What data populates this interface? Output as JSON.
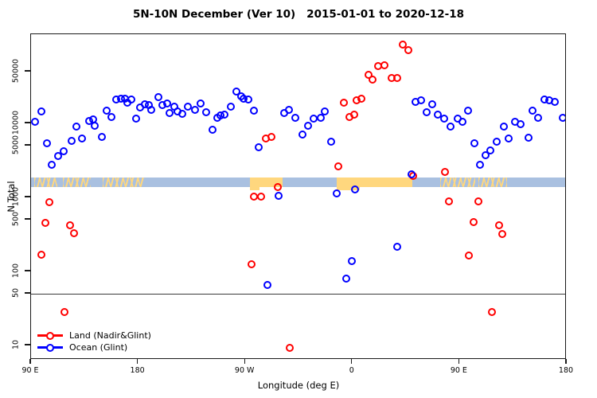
{
  "title_parts": [
    "5N-10N December (Ver 10)",
    "2015-01-01 to 2020-12-18"
  ],
  "chart_data": {
    "type": "scatter",
    "title": "5N-10N December (Ver 10)  2015-01-01 to 2020-12-18",
    "xlabel": "Longitude (deg E)",
    "ylabel": "N Total",
    "x_axis": {
      "note": "longitude axis wraps: 90E -> 180 -> 90W -> 0 -> 90E -> 180; stored as degrees 90..540 along axis",
      "min_deg": 90,
      "max_deg": 540,
      "ticks": [
        {
          "deg": 90,
          "label": "90 E"
        },
        {
          "deg": 180,
          "label": "180"
        },
        {
          "deg": 270,
          "label": "90 W"
        },
        {
          "deg": 360,
          "label": "0"
        },
        {
          "deg": 450,
          "label": "90 E"
        },
        {
          "deg": 540,
          "label": "180"
        }
      ]
    },
    "y_axis": {
      "scale": "log10",
      "min": 6.5,
      "max": 160000,
      "ticks": [
        {
          "value": 50000,
          "label": "50000"
        },
        {
          "value": 10000,
          "label": "10000"
        },
        {
          "value": 5000,
          "label": "5000"
        },
        {
          "value": 1000,
          "label": "1000"
        },
        {
          "value": 500,
          "label": "500"
        },
        {
          "value": 100,
          "label": "100"
        },
        {
          "value": 50,
          "label": "50"
        },
        {
          "value": 10,
          "label": "10"
        }
      ]
    },
    "reference_line": {
      "value": 50,
      "color": "#3a3a3a"
    },
    "highlight_band": {
      "value_min": 1380,
      "value_max": 1860,
      "color": "#a9c0e0"
    },
    "flagged_patches": {
      "color": "#ffd77e",
      "ranges": [
        {
          "from_deg": 93,
          "to_deg": 112,
          "style": "speckle"
        },
        {
          "from_deg": 117,
          "to_deg": 140,
          "style": "speckle"
        },
        {
          "from_deg": 150,
          "to_deg": 185,
          "style": "speckle"
        },
        {
          "from_deg": 274,
          "to_deg": 301,
          "style": "solid"
        },
        {
          "from_deg": 347,
          "to_deg": 410,
          "style": "solid"
        },
        {
          "from_deg": 434,
          "to_deg": 463,
          "style": "speckle"
        },
        {
          "from_deg": 466,
          "to_deg": 490,
          "style": "speckle"
        }
      ]
    },
    "legend": {
      "position": "bottom-left"
    },
    "series": [
      {
        "name": "Land (Nadir&Glint)",
        "color": "#ff0000",
        "points": [
          [
            105.2,
            860
          ],
          [
            101.8,
            450
          ],
          [
            122.6,
            420
          ],
          [
            125.9,
            330
          ],
          [
            98.5,
            168
          ],
          [
            117.9,
            28
          ],
          [
            275.2,
            125
          ],
          [
            277.2,
            1030
          ],
          [
            283.2,
            1030
          ],
          [
            297.2,
            1380
          ],
          [
            287.2,
            6250
          ],
          [
            291.8,
            6560
          ],
          [
            307.3,
            9.3
          ],
          [
            348.1,
            2630
          ],
          [
            352.8,
            19000
          ],
          [
            357.5,
            12200
          ],
          [
            361.5,
            13100
          ],
          [
            363.5,
            20500
          ],
          [
            367.5,
            21500
          ],
          [
            373.5,
            45000
          ],
          [
            376.9,
            39000
          ],
          [
            381.6,
            59000
          ],
          [
            386.9,
            61000
          ],
          [
            392.9,
            41000
          ],
          [
            397.6,
            41000
          ],
          [
            402.3,
            116000
          ],
          [
            407.0,
            97000
          ],
          [
            411.0,
            1950
          ],
          [
            437.8,
            2210
          ],
          [
            441.1,
            880
          ],
          [
            465.9,
            880
          ],
          [
            461.9,
            460
          ],
          [
            483.3,
            420
          ],
          [
            486.0,
            320
          ],
          [
            457.9,
            164
          ],
          [
            477.3,
            28
          ]
        ]
      },
      {
        "name": "Ocean (Glint)",
        "color": "#0000ff",
        "points": [
          [
            93.1,
            10500
          ],
          [
            98.5,
            14500
          ],
          [
            103.2,
            5400
          ],
          [
            107.2,
            2760
          ],
          [
            112.6,
            3620
          ],
          [
            117.2,
            4200
          ],
          [
            123.9,
            5800
          ],
          [
            127.9,
            9000
          ],
          [
            132.6,
            6250
          ],
          [
            138.6,
            10800
          ],
          [
            142.0,
            11300
          ],
          [
            143.3,
            9300
          ],
          [
            149.4,
            6560
          ],
          [
            153.4,
            14900
          ],
          [
            157.4,
            12200
          ],
          [
            161.4,
            21000
          ],
          [
            165.4,
            21500
          ],
          [
            168.8,
            21500
          ],
          [
            170.8,
            19000
          ],
          [
            174.1,
            21000
          ],
          [
            178.1,
            11600
          ],
          [
            181.5,
            16400
          ],
          [
            185.5,
            18100
          ],
          [
            188.8,
            17700
          ],
          [
            190.9,
            15200
          ],
          [
            196.9,
            22600
          ],
          [
            200.2,
            17700
          ],
          [
            204.2,
            18600
          ],
          [
            206.2,
            13800
          ],
          [
            210.3,
            16800
          ],
          [
            212.9,
            14500
          ],
          [
            217.0,
            13500
          ],
          [
            221.6,
            16800
          ],
          [
            227.7,
            15200
          ],
          [
            232.3,
            18600
          ],
          [
            237.0,
            14200
          ],
          [
            242.4,
            8200
          ],
          [
            246.4,
            11900
          ],
          [
            249.1,
            12800
          ],
          [
            252.4,
            13100
          ],
          [
            257.8,
            16800
          ],
          [
            262.5,
            26900
          ],
          [
            266.5,
            23200
          ],
          [
            268.5,
            21500
          ],
          [
            272.5,
            21000
          ],
          [
            277.2,
            14900
          ],
          [
            281.2,
            4800
          ],
          [
            288.5,
            66
          ],
          [
            297.9,
            1050
          ],
          [
            302.6,
            13800
          ],
          [
            306.6,
            15200
          ],
          [
            312.0,
            11900
          ],
          [
            318.0,
            7070
          ],
          [
            322.7,
            9300
          ],
          [
            327.4,
            11600
          ],
          [
            333.4,
            11900
          ],
          [
            336.7,
            14500
          ],
          [
            342.1,
            5660
          ],
          [
            346.8,
            1130
          ],
          [
            354.8,
            80
          ],
          [
            359.5,
            138
          ],
          [
            362.2,
            1280
          ],
          [
            397.6,
            215
          ],
          [
            409.7,
            2050
          ],
          [
            413.0,
            19500
          ],
          [
            417.7,
            20500
          ],
          [
            422.4,
            14200
          ],
          [
            427.1,
            18100
          ],
          [
            431.8,
            13100
          ],
          [
            437.1,
            11600
          ],
          [
            442.5,
            9050
          ],
          [
            448.5,
            11600
          ],
          [
            452.5,
            10500
          ],
          [
            457.2,
            14900
          ],
          [
            462.6,
            5400
          ],
          [
            467.3,
            2760
          ],
          [
            472.0,
            3720
          ],
          [
            476.0,
            4310
          ],
          [
            481.3,
            5660
          ],
          [
            487.3,
            9050
          ],
          [
            491.3,
            6250
          ],
          [
            496.7,
            10500
          ],
          [
            501.4,
            9800
          ],
          [
            508.1,
            6400
          ],
          [
            511.4,
            14900
          ],
          [
            516.1,
            11900
          ],
          [
            521.5,
            21000
          ],
          [
            525.5,
            20500
          ],
          [
            530.2,
            19500
          ],
          [
            536.9,
            11900
          ]
        ]
      }
    ]
  }
}
